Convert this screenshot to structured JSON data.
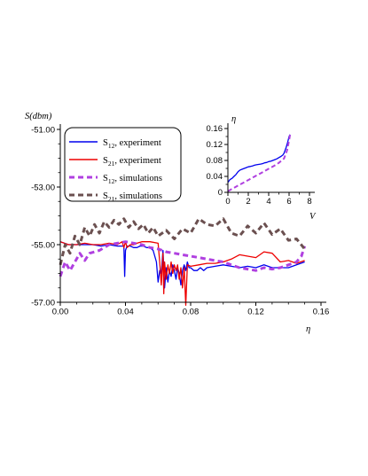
{
  "charts": [
    {
      "type": "line",
      "ylabel": "S(dbm)",
      "xlabel": "η",
      "xlim": [
        0,
        0.16
      ],
      "ylim": [
        -57,
        -51
      ],
      "x_ticks": [
        "0.00",
        "0.04",
        "0.08",
        "0.12",
        "0.16"
      ],
      "y_ticks": [
        "-51.00",
        "-53.00",
        "-55.00",
        "-57.00"
      ],
      "legend": [
        {
          "label": "S12, experiment",
          "sub": "12",
          "text": ", experiment",
          "color": "#0000ee",
          "dash": "solid"
        },
        {
          "label": "S21, experiment",
          "sub": "21",
          "text": ", experiment",
          "color": "#ee0000",
          "dash": "solid"
        },
        {
          "label": "S12, simulations",
          "sub": "12",
          "text": ", simulations",
          "color": "#b040e0",
          "dash": "dashed"
        },
        {
          "label": "S21, simulations",
          "sub": "21",
          "text": ", simulations",
          "color": "#6b5050",
          "dash": "dashed"
        }
      ],
      "series": [
        {
          "name": "S12, experiment",
          "color": "#0000ee",
          "width": 1.3,
          "dash": "",
          "x": [
            0,
            0.005,
            0.01,
            0.015,
            0.02,
            0.025,
            0.03,
            0.035,
            0.039,
            0.0395,
            0.04,
            0.041,
            0.043,
            0.045,
            0.047,
            0.049,
            0.051,
            0.053,
            0.055,
            0.057,
            0.059,
            0.06,
            0.061,
            0.062,
            0.063,
            0.064,
            0.065,
            0.066,
            0.067,
            0.068,
            0.069,
            0.07,
            0.071,
            0.072,
            0.073,
            0.074,
            0.075,
            0.076,
            0.077,
            0.078,
            0.079,
            0.08,
            0.082,
            0.084,
            0.086,
            0.088,
            0.09,
            0.095,
            0.1,
            0.105,
            0.11,
            0.115,
            0.12,
            0.125,
            0.13,
            0.135,
            0.14,
            0.145,
            0.15
          ],
          "y": [
            -54.9,
            -55.0,
            -55.0,
            -55.0,
            -55.0,
            -55.05,
            -55.0,
            -55.05,
            -55.05,
            -56.1,
            -55.2,
            -55.05,
            -55.05,
            -55.1,
            -55.1,
            -55.05,
            -55.05,
            -55.1,
            -55.1,
            -55.2,
            -55.6,
            -56.3,
            -55.9,
            -56.0,
            -55.2,
            -56.5,
            -55.8,
            -56.3,
            -55.9,
            -56.1,
            -55.7,
            -55.9,
            -56.2,
            -55.8,
            -56.0,
            -56.4,
            -55.9,
            -55.7,
            -55.9,
            -55.6,
            -55.8,
            -55.8,
            -55.9,
            -55.9,
            -55.8,
            -55.9,
            -55.8,
            -55.75,
            -55.7,
            -55.75,
            -55.8,
            -55.75,
            -55.8,
            -55.7,
            -55.8,
            -55.8,
            -55.8,
            -55.7,
            -55.6
          ]
        },
        {
          "name": "S21, experiment",
          "color": "#ee0000",
          "width": 1.3,
          "dash": "",
          "x": [
            0,
            0.005,
            0.01,
            0.015,
            0.02,
            0.025,
            0.03,
            0.035,
            0.038,
            0.039,
            0.04,
            0.041,
            0.043,
            0.045,
            0.047,
            0.05,
            0.055,
            0.06,
            0.061,
            0.062,
            0.063,
            0.0635,
            0.064,
            0.065,
            0.066,
            0.067,
            0.068,
            0.069,
            0.07,
            0.071,
            0.072,
            0.073,
            0.074,
            0.075,
            0.076,
            0.077,
            0.078,
            0.08,
            0.085,
            0.09,
            0.095,
            0.1,
            0.105,
            0.11,
            0.115,
            0.12,
            0.125,
            0.13,
            0.135,
            0.14,
            0.145,
            0.15
          ],
          "y": [
            -54.9,
            -55.0,
            -55.0,
            -54.95,
            -55.0,
            -55.0,
            -54.95,
            -55.0,
            -54.9,
            -55.1,
            -54.9,
            -55.1,
            -55.0,
            -55.0,
            -54.95,
            -54.9,
            -54.9,
            -54.95,
            -55.6,
            -56.4,
            -55.3,
            -56.7,
            -55.6,
            -56.2,
            -55.7,
            -56.0,
            -55.6,
            -56.0,
            -55.7,
            -55.9,
            -55.7,
            -56.2,
            -55.8,
            -56.5,
            -55.8,
            -57.1,
            -55.7,
            -55.75,
            -55.7,
            -55.65,
            -55.65,
            -55.6,
            -55.5,
            -55.35,
            -55.4,
            -55.45,
            -55.25,
            -55.3,
            -55.6,
            -55.55,
            -55.65,
            -55.55
          ]
        },
        {
          "name": "S12, simulations",
          "color": "#b040e0",
          "width": 3,
          "dash": "6,4",
          "x": [
            0,
            0.003,
            0.006,
            0.009,
            0.012,
            0.015,
            0.018,
            0.021,
            0.024,
            0.027,
            0.03,
            0.035,
            0.04,
            0.045,
            0.05,
            0.055,
            0.06,
            0.065,
            0.07,
            0.075,
            0.08,
            0.085,
            0.09,
            0.095,
            0.1,
            0.105,
            0.11,
            0.115,
            0.12,
            0.125,
            0.13,
            0.135,
            0.14,
            0.145,
            0.148,
            0.15
          ],
          "y": [
            -56.1,
            -55.6,
            -55.9,
            -55.6,
            -55.3,
            -55.55,
            -55.3,
            -55.25,
            -55.2,
            -55.1,
            -55.0,
            -54.95,
            -54.9,
            -54.95,
            -55.0,
            -55.1,
            -55.15,
            -55.25,
            -55.3,
            -55.35,
            -55.4,
            -55.45,
            -55.5,
            -55.55,
            -55.6,
            -55.7,
            -55.8,
            -55.85,
            -55.9,
            -55.8,
            -55.85,
            -55.8,
            -55.7,
            -55.6,
            -55.4,
            -55.05
          ]
        },
        {
          "name": "S21, simulations",
          "color": "#6b5050",
          "width": 3,
          "dash": "6,4",
          "x": [
            0,
            0.003,
            0.006,
            0.009,
            0.012,
            0.015,
            0.018,
            0.021,
            0.024,
            0.027,
            0.03,
            0.033,
            0.036,
            0.039,
            0.042,
            0.045,
            0.048,
            0.051,
            0.054,
            0.057,
            0.06,
            0.065,
            0.07,
            0.075,
            0.08,
            0.085,
            0.09,
            0.095,
            0.1,
            0.105,
            0.11,
            0.115,
            0.12,
            0.125,
            0.13,
            0.135,
            0.14,
            0.145,
            0.15
          ],
          "y": [
            -55.7,
            -55.0,
            -55.3,
            -54.7,
            -55.0,
            -54.4,
            -54.7,
            -54.3,
            -54.6,
            -54.2,
            -54.4,
            -54.15,
            -54.3,
            -54.1,
            -54.4,
            -54.2,
            -54.45,
            -54.3,
            -54.6,
            -54.4,
            -54.7,
            -54.5,
            -54.8,
            -54.45,
            -54.6,
            -54.1,
            -54.3,
            -54.35,
            -54.1,
            -54.6,
            -54.7,
            -54.35,
            -54.6,
            -54.25,
            -54.65,
            -54.45,
            -54.85,
            -54.8,
            -55.15
          ]
        }
      ]
    },
    {
      "type": "line",
      "ylabel": "η",
      "xlabel": "V",
      "xlim": [
        0,
        8
      ],
      "ylim": [
        0,
        0.16
      ],
      "x_ticks": [
        "0",
        "2",
        "4",
        "6",
        "8"
      ],
      "y_ticks": [
        "0.16",
        "0.12",
        "0.08",
        "0.04",
        "0"
      ],
      "series": [
        {
          "name": "S12",
          "color": "#0000ee",
          "width": 1.3,
          "dash": "",
          "x": [
            0,
            0.2,
            0.4,
            0.6,
            0.8,
            1.0,
            1.2,
            1.4,
            1.6,
            1.8,
            2.0,
            2.2,
            2.4,
            2.6,
            2.8,
            3.0,
            3.2,
            3.4,
            3.6,
            3.8,
            4.0,
            4.2,
            4.4,
            4.6,
            4.8,
            5.0,
            5.2,
            5.4,
            5.5,
            5.6,
            5.7,
            5.8,
            5.9,
            6.0,
            6.1
          ],
          "y": [
            0.025,
            0.032,
            0.035,
            0.04,
            0.045,
            0.052,
            0.056,
            0.058,
            0.06,
            0.062,
            0.064,
            0.065,
            0.066,
            0.068,
            0.069,
            0.07,
            0.071,
            0.072,
            0.074,
            0.075,
            0.077,
            0.078,
            0.08,
            0.082,
            0.084,
            0.087,
            0.09,
            0.094,
            0.098,
            0.105,
            0.112,
            0.12,
            0.13,
            0.14,
            0.145
          ]
        },
        {
          "name": "S12 simulations",
          "color": "#b040e0",
          "width": 2,
          "dash": "5,3",
          "x": [
            0,
            0.5,
            1.0,
            1.5,
            2.0,
            2.5,
            3.0,
            3.5,
            4.0,
            4.5,
            5.0,
            5.5,
            5.8,
            6.0,
            6.1
          ],
          "y": [
            0.003,
            0.01,
            0.017,
            0.024,
            0.031,
            0.038,
            0.045,
            0.052,
            0.059,
            0.066,
            0.074,
            0.085,
            0.105,
            0.13,
            0.145
          ]
        }
      ]
    }
  ]
}
